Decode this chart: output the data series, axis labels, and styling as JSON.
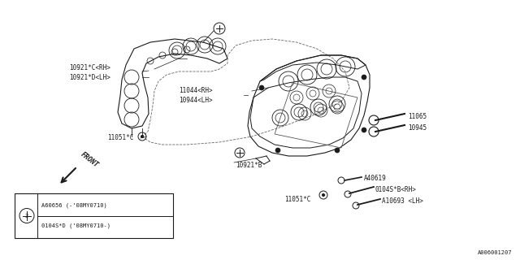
{
  "bg_color": "#ffffff",
  "line_color": "#1a1a1a",
  "diagram_id": "A006001207",
  "figsize": [
    6.4,
    3.2
  ],
  "dpi": 100,
  "labels": {
    "10921C_RH": "10921*C<RH>",
    "10921D_LH": "10921*D<LH>",
    "11044_RH": "11044<RH>",
    "10944_LH": "10944<LH>",
    "11051C_left": "11051*C",
    "10921B": "10921*B",
    "11051C_right": "11051*C",
    "11065": "11065",
    "10945": "10945",
    "A40619": "A40619",
    "0104SB_RH": "0104S*B<RH>",
    "A10693_LH": "A10693 <LH>",
    "FRONT": "FRONT"
  },
  "legend": {
    "line1": "A60656 (-'08MY0710)",
    "line2": "0104S*D ('08MY0710-)"
  }
}
